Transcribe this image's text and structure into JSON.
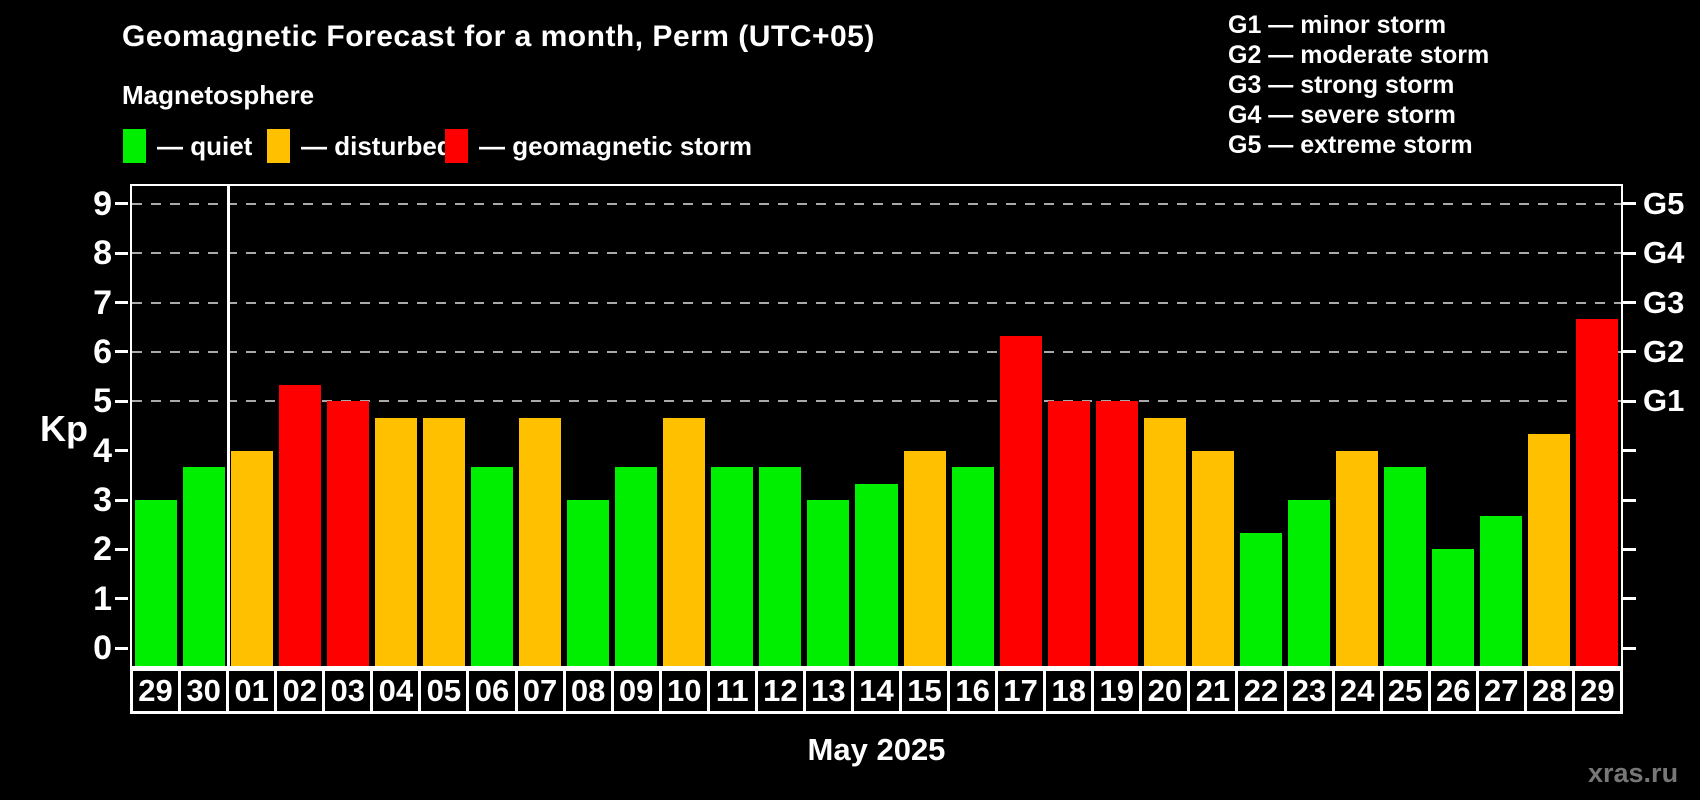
{
  "title": "Geomagnetic Forecast for a month, Perm (UTC+05)",
  "subtitle": "Magnetosphere",
  "legend": {
    "items": [
      {
        "label": "— quiet",
        "status": "quiet",
        "color": "#00ee00"
      },
      {
        "label": "— disturbed",
        "status": "disturbed",
        "color": "#ffc000"
      },
      {
        "label": "— geomagnetic storm",
        "status": "storm",
        "color": "#ff0000"
      }
    ]
  },
  "g_legend": [
    "G1 — minor storm",
    "G2 — moderate storm",
    "G3 — strong storm",
    "G4 — severe storm",
    "G5 — extreme storm"
  ],
  "chart_data": {
    "type": "bar",
    "title": "Geomagnetic Forecast for a month, Perm (UTC+05)",
    "xlabel": "May 2025",
    "ylabel": "Kp",
    "ylim": [
      0,
      9
    ],
    "yticks": [
      0,
      1,
      2,
      3,
      4,
      5,
      6,
      7,
      8,
      9
    ],
    "gridlines_kp": [
      5,
      6,
      7,
      8,
      9
    ],
    "grid": "dashed horizontal at storm levels only",
    "right_axis_labels": [
      {
        "kp": 5,
        "label": "G1"
      },
      {
        "kp": 6,
        "label": "G2"
      },
      {
        "kp": 7,
        "label": "G3"
      },
      {
        "kp": 8,
        "label": "G4"
      },
      {
        "kp": 9,
        "label": "G5"
      }
    ],
    "month_separator_after_index": 1,
    "categories": [
      "29",
      "30",
      "01",
      "02",
      "03",
      "04",
      "05",
      "06",
      "07",
      "08",
      "09",
      "10",
      "11",
      "12",
      "13",
      "14",
      "15",
      "16",
      "17",
      "18",
      "19",
      "20",
      "21",
      "22",
      "23",
      "24",
      "25",
      "26",
      "27",
      "28",
      "29"
    ],
    "values": [
      3.0,
      3.67,
      4.0,
      5.33,
      5.0,
      4.67,
      4.67,
      3.67,
      4.67,
      3.0,
      3.67,
      4.67,
      3.67,
      3.67,
      3.0,
      3.33,
      4.0,
      3.67,
      6.33,
      5.0,
      5.0,
      4.67,
      4.0,
      2.33,
      3.0,
      4.0,
      3.67,
      2.0,
      2.67,
      4.33,
      6.67
    ],
    "statuses": [
      "quiet",
      "quiet",
      "disturbed",
      "storm",
      "storm",
      "disturbed",
      "disturbed",
      "quiet",
      "disturbed",
      "quiet",
      "quiet",
      "disturbed",
      "quiet",
      "quiet",
      "quiet",
      "quiet",
      "disturbed",
      "quiet",
      "storm",
      "storm",
      "storm",
      "disturbed",
      "disturbed",
      "quiet",
      "quiet",
      "disturbed",
      "quiet",
      "quiet",
      "quiet",
      "disturbed",
      "storm"
    ]
  },
  "footer": {
    "caption": "May 2025",
    "watermark": "xras.ru"
  },
  "colors": {
    "quiet": "#00ee00",
    "disturbed": "#ffc000",
    "storm": "#ff0000",
    "background": "#000000",
    "axis": "#ffffff",
    "grid": "#a9a9a9",
    "watermark": "#777777"
  }
}
